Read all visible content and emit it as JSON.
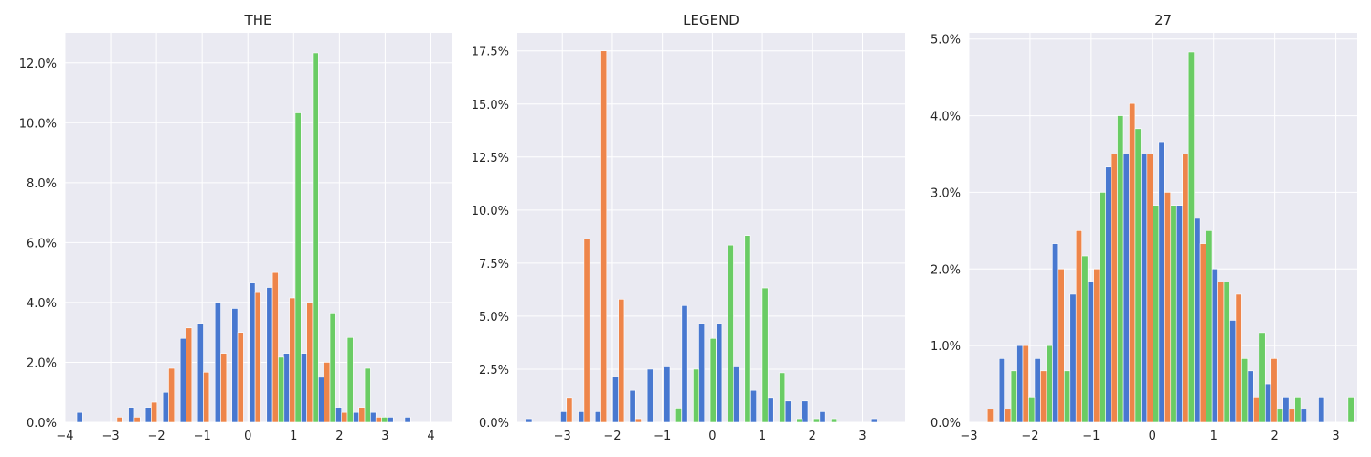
{
  "colors": {
    "series0": "#4878d0",
    "series1": "#ee854a",
    "series2": "#6acc64",
    "background": "#eaeaf2",
    "grid": "#ffffff"
  },
  "chart_data": [
    {
      "type": "bar",
      "title": "THE",
      "xlim": [
        -4,
        4.45
      ],
      "ylim": [
        0,
        0.13
      ],
      "xticks": [
        -4,
        -3,
        -2,
        -1,
        0,
        1,
        2,
        3,
        4
      ],
      "yticks": [
        0,
        0.02,
        0.04,
        0.06,
        0.08,
        0.1,
        0.12
      ],
      "xtick_labels": [
        "−4",
        "−3",
        "−2",
        "−1",
        "0",
        "1",
        "2",
        "3",
        "4"
      ],
      "ytick_labels": [
        "0.0%",
        "2.0%",
        "4.0%",
        "6.0%",
        "8.0%",
        "10.0%",
        "12.0%"
      ],
      "grid": true,
      "bin_width": 0.38,
      "series": [
        {
          "x": [
            -3.55,
            -2.8,
            -2.42,
            -2.05,
            -1.67,
            -1.29,
            -0.91,
            -0.53,
            -0.16,
            0.22,
            0.6,
            0.97,
            1.35,
            1.73,
            2.11,
            2.49,
            2.86,
            3.24,
            3.62
          ],
          "values": [
            0.0033,
            0,
            0.005,
            0.005,
            0.01,
            0.028,
            0.033,
            0.04,
            0.038,
            0.0465,
            0.045,
            0.023,
            0.023,
            0.015,
            0.005,
            0.0033,
            0.0033,
            0.0017,
            0.0017
          ]
        },
        {
          "x": [
            -2.8,
            -2.42,
            -2.05,
            -1.67,
            -1.29,
            -0.91,
            -0.53,
            -0.16,
            0.22,
            0.6,
            0.97,
            1.35,
            1.73,
            2.11,
            2.49,
            2.86,
            3.24
          ],
          "values": [
            0.0017,
            0.0017,
            0.0067,
            0.018,
            0.0315,
            0.0167,
            0.023,
            0.03,
            0.0433,
            0.05,
            0.0415,
            0.04,
            0.02,
            0.0033,
            0.005,
            0.0017,
            0
          ]
        },
        {
          "x": [
            0.6,
            0.97,
            1.35,
            1.73,
            2.11,
            2.49,
            2.86,
            3.24
          ],
          "values": [
            0.0217,
            0.1033,
            0.1233,
            0.0365,
            0.0283,
            0.018,
            0.0017,
            0
          ]
        }
      ]
    },
    {
      "type": "bar",
      "title": "LEGEND",
      "xlim": [
        -3.9,
        3.85
      ],
      "ylim": [
        0,
        0.1835
      ],
      "xticks": [
        -3,
        -2,
        -1,
        0,
        1,
        2,
        3
      ],
      "yticks": [
        0,
        0.025,
        0.05,
        0.075,
        0.1,
        0.125,
        0.15,
        0.175
      ],
      "xtick_labels": [
        "−3",
        "−2",
        "−1",
        "0",
        "1",
        "2",
        "3"
      ],
      "ytick_labels": [
        "0.0%",
        "2.5%",
        "5.0%",
        "7.5%",
        "10.0%",
        "12.5%",
        "15.0%",
        "17.5%"
      ],
      "grid": true,
      "bin_width": 0.345,
      "series": [
        {
          "x": [
            -3.55,
            -2.86,
            -2.51,
            -2.17,
            -1.82,
            -1.48,
            -1.13,
            -0.79,
            -0.44,
            -0.1,
            0.25,
            0.59,
            0.94,
            1.28,
            1.63,
            1.97,
            2.32,
            3.35
          ],
          "values": [
            0.0017,
            0.005,
            0.005,
            0.005,
            0.0215,
            0.015,
            0.025,
            0.0265,
            0.055,
            0.0465,
            0.0465,
            0.0265,
            0.015,
            0.0117,
            0.01,
            0.01,
            0.005,
            0.0017
          ]
        },
        {
          "x": [
            -2.86,
            -2.51,
            -2.17,
            -1.82,
            -1.48
          ],
          "values": [
            0.0117,
            0.0865,
            0.175,
            0.058,
            0.0017
          ]
        },
        {
          "x": [
            -0.79,
            -0.44,
            -0.1,
            0.25,
            0.59,
            0.94,
            1.28,
            1.63,
            1.97,
            2.32
          ],
          "values": [
            0.0067,
            0.025,
            0.0395,
            0.0835,
            0.088,
            0.0633,
            0.0233,
            0.0017,
            0.0017,
            0.0017
          ]
        }
      ]
    },
    {
      "type": "bar",
      "title": "27",
      "xlim": [
        -3.0,
        3.35
      ],
      "ylim": [
        0,
        0.0508
      ],
      "xticks": [
        -3,
        -2,
        -1,
        0,
        1,
        2,
        3
      ],
      "yticks": [
        0,
        0.01,
        0.02,
        0.03,
        0.04,
        0.05
      ],
      "xtick_labels": [
        "−3",
        "−2",
        "−1",
        "0",
        "1",
        "2",
        "3"
      ],
      "ytick_labels": [
        "0.0%",
        "1.0%",
        "2.0%",
        "3.0%",
        "4.0%",
        "5.0%"
      ],
      "grid": true,
      "bin_width": 0.29,
      "series": [
        {
          "x": [
            -2.36,
            -2.07,
            -1.78,
            -1.49,
            -1.2,
            -0.91,
            -0.62,
            -0.33,
            -0.04,
            0.25,
            0.54,
            0.83,
            1.12,
            1.41,
            1.7,
            1.99,
            2.28,
            2.57,
            2.86
          ],
          "values": [
            0.0083,
            0.01,
            0.0083,
            0.0233,
            0.0167,
            0.0183,
            0.0333,
            0.035,
            0.035,
            0.0366,
            0.0283,
            0.0266,
            0.02,
            0.0133,
            0.0067,
            0.005,
            0.0033,
            0.0017,
            0.0033
          ]
        },
        {
          "x": [
            -2.65,
            -2.36,
            -2.07,
            -1.78,
            -1.49,
            -1.2,
            -0.91,
            -0.62,
            -0.33,
            -0.04,
            0.25,
            0.54,
            0.83,
            1.12,
            1.41,
            1.7,
            1.99,
            2.28
          ],
          "values": [
            0.0017,
            0.0017,
            0.01,
            0.0067,
            0.02,
            0.025,
            0.02,
            0.035,
            0.0416,
            0.035,
            0.03,
            0.035,
            0.0233,
            0.0183,
            0.0167,
            0.0033,
            0.0083,
            0.0017
          ]
        },
        {
          "x": [
            -2.36,
            -2.07,
            -1.78,
            -1.49,
            -1.2,
            -0.91,
            -0.62,
            -0.33,
            -0.04,
            0.25,
            0.54,
            0.83,
            1.12,
            1.41,
            1.7,
            1.99,
            2.28,
            3.15
          ],
          "values": [
            0.0067,
            0.0033,
            0.01,
            0.0067,
            0.0217,
            0.03,
            0.04,
            0.0383,
            0.0283,
            0.0283,
            0.0483,
            0.025,
            0.0183,
            0.0083,
            0.0117,
            0.0017,
            0.0033,
            0.0033
          ]
        }
      ]
    }
  ]
}
